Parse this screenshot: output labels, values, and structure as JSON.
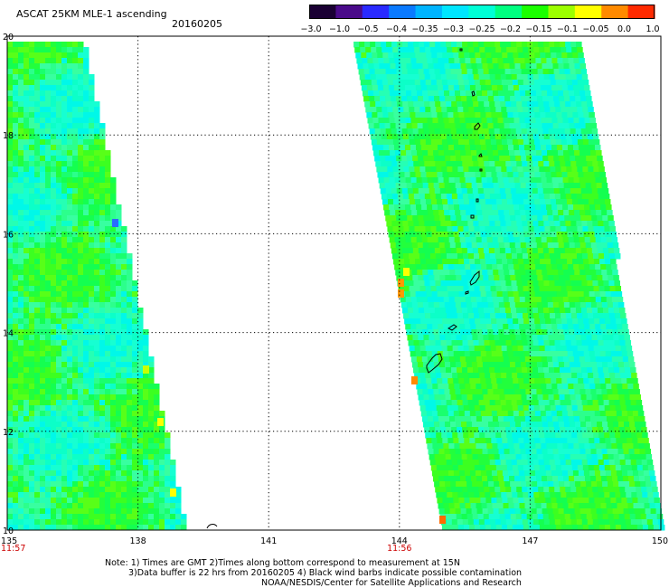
{
  "header": {
    "title": "ASCAT 25KM MLE-1 ascending",
    "date": "20160205"
  },
  "colorbar": {
    "labels": [
      "−3.0",
      "−1.0",
      "−0.5",
      "−0.4",
      "−0.35",
      "−0.3",
      "−0.25",
      "−0.2",
      "−0.15",
      "−0.1",
      "−0.05",
      "0.0",
      "1.0"
    ],
    "colors": [
      "#1a0033",
      "#4a0a8a",
      "#2a2aff",
      "#0a7aff",
      "#00b4ff",
      "#00e6ff",
      "#00ffd6",
      "#00ff80",
      "#1aff00",
      "#9cff00",
      "#ffff00",
      "#ff8a00",
      "#ff2a00"
    ]
  },
  "map": {
    "lon_ticks": [
      "135",
      "138",
      "141",
      "144",
      "147",
      "150"
    ],
    "lat_ticks": [
      "20",
      "18",
      "16",
      "14",
      "12",
      "10"
    ],
    "lon_range": [
      135,
      150
    ],
    "lat_range": [
      10,
      20
    ],
    "pass_times": [
      {
        "lon": 135,
        "label": "11:57"
      },
      {
        "lon": 144,
        "label": "11:56"
      }
    ]
  },
  "notes": {
    "line1": "Note: 1) Times are GMT 2)Times along bottom correspond to measurement at 15N",
    "line2": "3)Data buffer is 22 hrs from 20160205 4) Black wind barbs indicate possible contamination",
    "line3": "NOAA/NESDIS/Center for Satellite Applications and Research"
  }
}
